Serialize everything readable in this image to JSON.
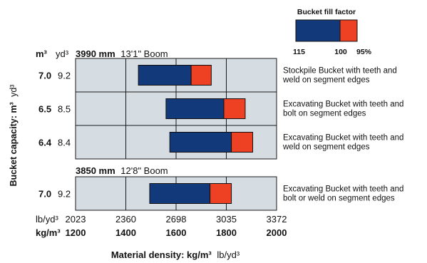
{
  "colors": {
    "panel": "#d6dde2",
    "grid": "#1a1a1a",
    "bar_base": "#123a7a",
    "bar_extra": "#ee4022"
  },
  "legend": {
    "title": "Bucket fill factor",
    "labels": [
      "115",
      "100",
      "95%"
    ]
  },
  "header_units": {
    "metric": "m³",
    "imperial": "yd³"
  },
  "y_axis_title": {
    "bold": "Bucket capacity: m³",
    "light": "yd³"
  },
  "x_axis": {
    "lb_unit": "lb/yd³",
    "kg_unit": "kg/m³",
    "lb_ticks": [
      "2023",
      "2360",
      "2698",
      "3035",
      "3372"
    ],
    "kg_ticks": [
      "1200",
      "1400",
      "1600",
      "1800",
      "2000"
    ],
    "title_bold": "Material density: kg/m³",
    "title_light": "lb/yd³"
  },
  "chart_data": {
    "type": "bar",
    "orientation": "horizontal-range",
    "xlim": [
      1200,
      2000
    ],
    "x_unit": "kg/m³",
    "series_meaning": [
      "fill factor 115%",
      "fill factor 100%",
      "fill factor 95%"
    ],
    "groups": [
      {
        "boom_bold": "3990 mm",
        "boom_light": "13'1\" Boom",
        "rows": [
          {
            "cap_m3": "7.0",
            "cap_yd3": "9.2",
            "x115": 1450,
            "x100": 1660,
            "x95": 1740,
            "desc": [
              "Stockpile Bucket with teeth and",
              "weld on segment edges"
            ]
          },
          {
            "cap_m3": "6.5",
            "cap_yd3": "8.5",
            "x115": 1560,
            "x100": 1790,
            "x95": 1875,
            "desc": [
              "Excavating Bucket with teeth and",
              "bolt on segment edges"
            ]
          },
          {
            "cap_m3": "6.4",
            "cap_yd3": "8.4",
            "x115": 1575,
            "x100": 1820,
            "x95": 1905,
            "desc": [
              "Excavating Bucket with teeth and",
              "weld on segment edges"
            ]
          }
        ]
      },
      {
        "boom_bold": "3850 mm",
        "boom_light": "12'8\" Boom",
        "rows": [
          {
            "cap_m3": "7.0",
            "cap_yd3": "9.2",
            "x115": 1495,
            "x100": 1735,
            "x95": 1820,
            "desc": [
              "Excavating Bucket with teeth and",
              "bolt or weld on segment edges"
            ]
          }
        ]
      }
    ]
  }
}
